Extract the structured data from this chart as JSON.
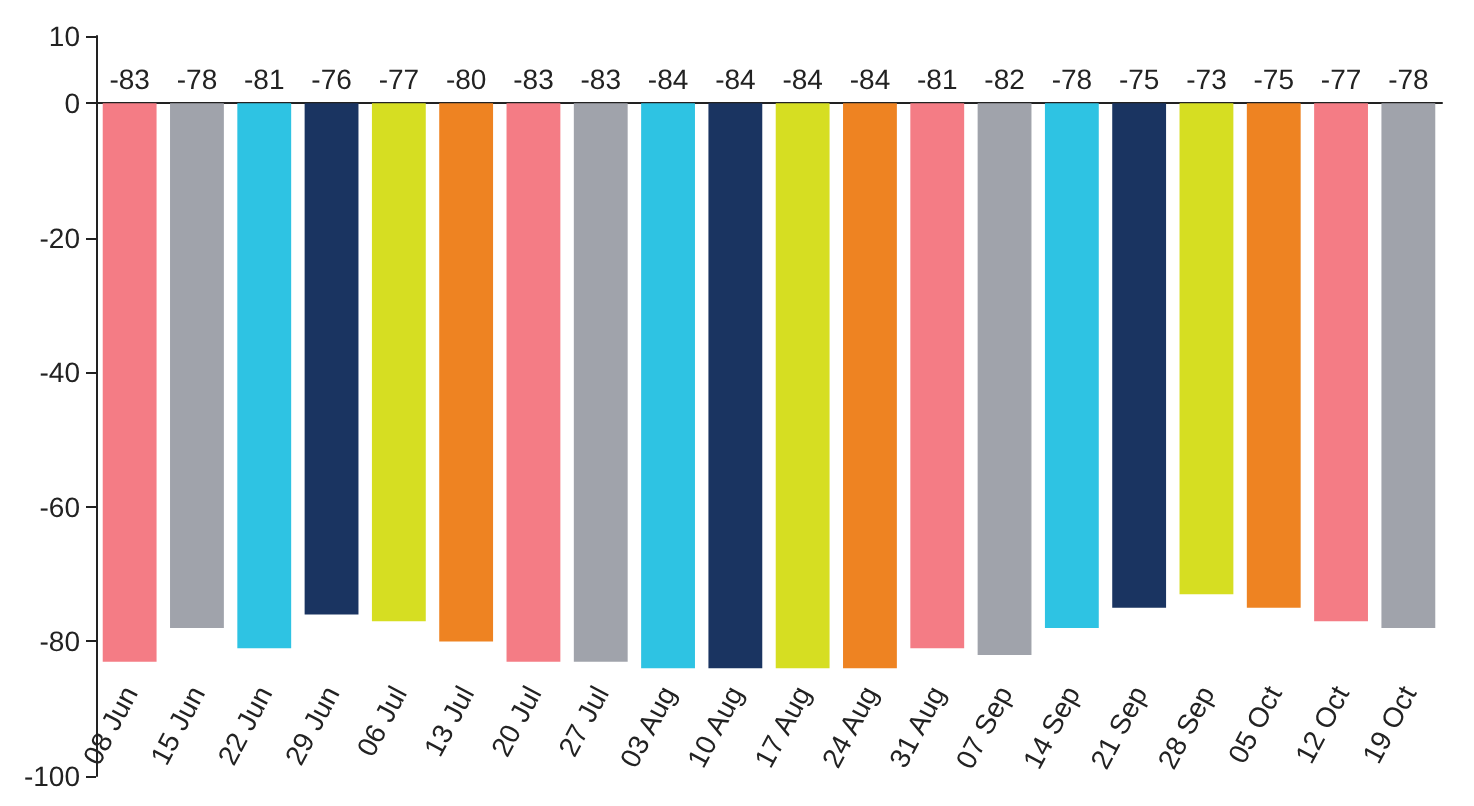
{
  "chart_data": {
    "type": "bar",
    "categories": [
      "08 Jun",
      "15 Jun",
      "22 Jun",
      "29 Jun",
      "06 Jul",
      "13 Jul",
      "20 Jul",
      "27 Jul",
      "03 Aug",
      "10 Aug",
      "17 Aug",
      "24 Aug",
      "31 Aug",
      "07 Sep",
      "14 Sep",
      "21 Sep",
      "28 Sep",
      "05 Oct",
      "12 Oct",
      "19 Oct"
    ],
    "values": [
      -83,
      -78,
      -81,
      -76,
      -77,
      -80,
      -83,
      -83,
      -84,
      -84,
      -84,
      -84,
      -81,
      -82,
      -78,
      -75,
      -73,
      -75,
      -77,
      -78
    ],
    "colors": [
      "#f47c85",
      "#a0a3ab",
      "#2ec3e3",
      "#1a3461",
      "#d6de22",
      "#ee8322",
      "#f47c85",
      "#a0a3ab",
      "#2ec3e3",
      "#1a3461",
      "#d6de22",
      "#ee8322",
      "#f47c85",
      "#a0a3ab",
      "#2ec3e3",
      "#1a3461",
      "#d6de22",
      "#ee8322",
      "#f47c85",
      "#a0a3ab"
    ],
    "ylim": [
      -100,
      10
    ],
    "yticks": [
      -100,
      -80,
      -60,
      -40,
      -20,
      0,
      10
    ],
    "data_labels": true
  }
}
